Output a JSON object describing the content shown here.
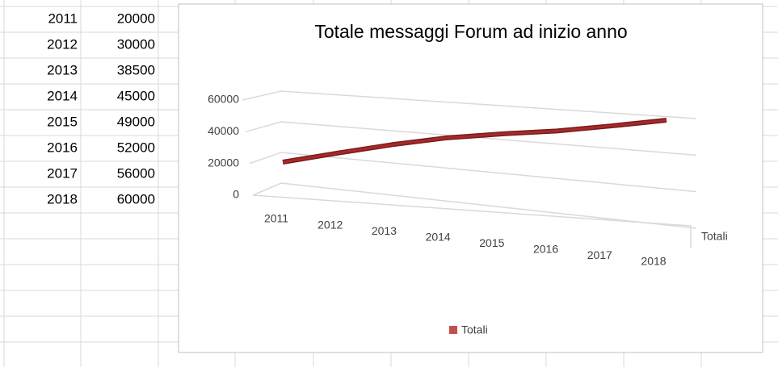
{
  "chart_data": {
    "type": "line",
    "title": "Totale messaggi Forum ad inizio anno",
    "categories": [
      "2011",
      "2012",
      "2013",
      "2014",
      "2015",
      "2016",
      "2017",
      "2018"
    ],
    "series": [
      {
        "name": "Totali",
        "color": "#a52a2a",
        "values": [
          20000,
          30000,
          38500,
          45000,
          49000,
          52000,
          56000,
          60000
        ]
      }
    ],
    "ylim": [
      0,
      60000
    ],
    "yticks": [
      0,
      20000,
      40000,
      60000
    ],
    "grid": true,
    "z_axis_label": "Totali",
    "legend": "bottom"
  }
}
